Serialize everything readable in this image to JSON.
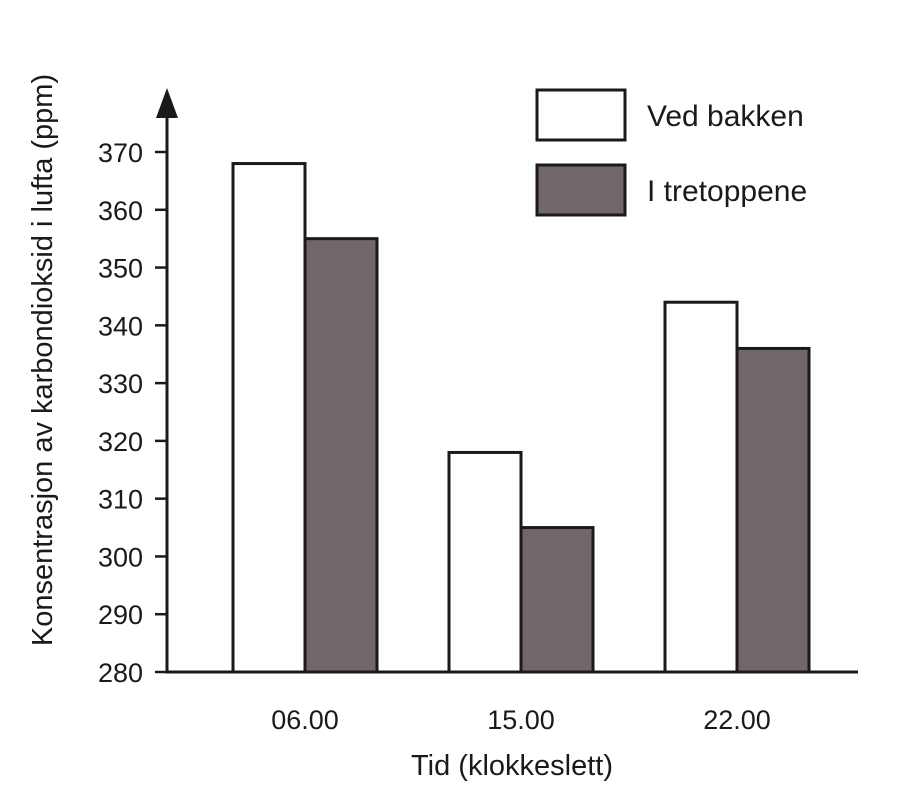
{
  "chart_data": {
    "type": "bar",
    "categories": [
      "06.00",
      "15.00",
      "22.00"
    ],
    "series": [
      {
        "name": "Ved bakken",
        "values": [
          368,
          318,
          344
        ],
        "color": "#ffffff"
      },
      {
        "name": "I tretoppene",
        "values": [
          355,
          305,
          336
        ],
        "color": "#716769"
      }
    ],
    "xlabel": "Tid (klokkeslett)",
    "ylabel": "Konsentrasjon av karbondioksid i lufta (ppm)",
    "ylim": [
      280,
      370
    ],
    "yticks": [
      280,
      290,
      300,
      310,
      320,
      330,
      340,
      350,
      360,
      370
    ],
    "grid": false,
    "legend": "top-right"
  }
}
